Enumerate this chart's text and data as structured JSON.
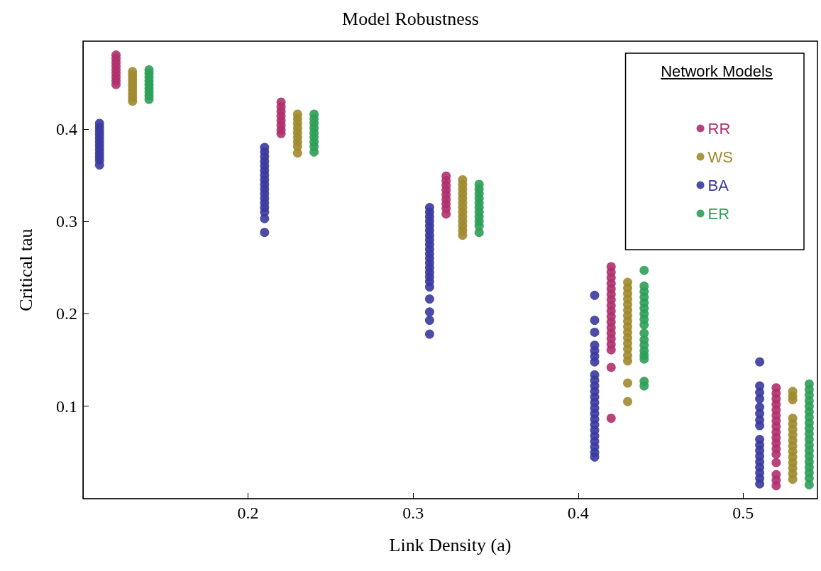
{
  "chart_data": {
    "type": "scatter",
    "title": "Model Robustness",
    "xlabel": "Link Density (a)",
    "ylabel": "Critical tau",
    "legend_title": "Network Models",
    "legend": "top right",
    "marker": "circle",
    "grid": false,
    "xlim": [
      0.1,
      0.545
    ],
    "xticks": [
      0.2,
      0.3,
      0.4,
      0.5
    ],
    "ylim": [
      0,
      0.495
    ],
    "yticks": [
      0.1,
      0.2,
      0.3,
      0.4
    ],
    "series": [
      {
        "name": "RR",
        "color": "#b0306e",
        "x": [
          0.12,
          0.12,
          0.12,
          0.12,
          0.12,
          0.12,
          0.12,
          0.12,
          0.12,
          0.22,
          0.22,
          0.22,
          0.22,
          0.22,
          0.22,
          0.22,
          0.22,
          0.32,
          0.32,
          0.32,
          0.32,
          0.32,
          0.32,
          0.32,
          0.32,
          0.32,
          0.42,
          0.42,
          0.42,
          0.42,
          0.42,
          0.42,
          0.42,
          0.42,
          0.42,
          0.42,
          0.42,
          0.42,
          0.42,
          0.42,
          0.42,
          0.42,
          0.42,
          0.42,
          0.52,
          0.52,
          0.52,
          0.52,
          0.52,
          0.52,
          0.52,
          0.52,
          0.52,
          0.52,
          0.52,
          0.52,
          0.52,
          0.52,
          0.52,
          0.52,
          0.52
        ],
        "values": [
          0.48,
          0.476,
          0.472,
          0.468,
          0.464,
          0.46,
          0.456,
          0.452,
          0.448,
          0.429,
          0.424,
          0.419,
          0.414,
          0.409,
          0.404,
          0.399,
          0.395,
          0.349,
          0.344,
          0.339,
          0.334,
          0.329,
          0.324,
          0.319,
          0.314,
          0.308,
          0.251,
          0.245,
          0.239,
          0.233,
          0.227,
          0.221,
          0.215,
          0.209,
          0.203,
          0.197,
          0.191,
          0.185,
          0.179,
          0.173,
          0.167,
          0.161,
          0.142,
          0.087,
          0.12,
          0.114,
          0.108,
          0.102,
          0.096,
          0.09,
          0.084,
          0.078,
          0.072,
          0.066,
          0.06,
          0.054,
          0.048,
          0.039,
          0.026,
          0.02,
          0.014
        ]
      },
      {
        "name": "WS",
        "color": "#a08a2e",
        "x": [
          0.13,
          0.13,
          0.13,
          0.13,
          0.13,
          0.13,
          0.13,
          0.13,
          0.13,
          0.23,
          0.23,
          0.23,
          0.23,
          0.23,
          0.23,
          0.23,
          0.23,
          0.23,
          0.33,
          0.33,
          0.33,
          0.33,
          0.33,
          0.33,
          0.33,
          0.33,
          0.33,
          0.33,
          0.33,
          0.33,
          0.33,
          0.43,
          0.43,
          0.43,
          0.43,
          0.43,
          0.43,
          0.43,
          0.43,
          0.43,
          0.43,
          0.43,
          0.43,
          0.43,
          0.43,
          0.43,
          0.43,
          0.43,
          0.53,
          0.53,
          0.53,
          0.53,
          0.53,
          0.53,
          0.53,
          0.53,
          0.53,
          0.53,
          0.53,
          0.53,
          0.53,
          0.53,
          0.53
        ],
        "values": [
          0.462,
          0.458,
          0.454,
          0.45,
          0.446,
          0.442,
          0.438,
          0.434,
          0.43,
          0.416,
          0.411,
          0.406,
          0.401,
          0.396,
          0.391,
          0.386,
          0.381,
          0.374,
          0.345,
          0.34,
          0.335,
          0.33,
          0.325,
          0.32,
          0.315,
          0.31,
          0.305,
          0.3,
          0.295,
          0.29,
          0.285,
          0.234,
          0.228,
          0.222,
          0.216,
          0.21,
          0.204,
          0.198,
          0.192,
          0.186,
          0.18,
          0.174,
          0.168,
          0.162,
          0.155,
          0.149,
          0.125,
          0.105,
          0.116,
          0.111,
          0.107,
          0.087,
          0.081,
          0.075,
          0.069,
          0.063,
          0.057,
          0.051,
          0.045,
          0.039,
          0.033,
          0.027,
          0.021
        ]
      },
      {
        "name": "BA",
        "color": "#3a3a9e",
        "x": [
          0.11,
          0.11,
          0.11,
          0.11,
          0.11,
          0.11,
          0.11,
          0.11,
          0.11,
          0.11,
          0.11,
          0.11,
          0.21,
          0.21,
          0.21,
          0.21,
          0.21,
          0.21,
          0.21,
          0.21,
          0.21,
          0.21,
          0.21,
          0.21,
          0.21,
          0.21,
          0.21,
          0.21,
          0.21,
          0.31,
          0.31,
          0.31,
          0.31,
          0.31,
          0.31,
          0.31,
          0.31,
          0.31,
          0.31,
          0.31,
          0.31,
          0.31,
          0.31,
          0.31,
          0.31,
          0.31,
          0.31,
          0.31,
          0.31,
          0.31,
          0.31,
          0.41,
          0.41,
          0.41,
          0.41,
          0.41,
          0.41,
          0.41,
          0.41,
          0.41,
          0.41,
          0.41,
          0.41,
          0.41,
          0.41,
          0.41,
          0.41,
          0.41,
          0.41,
          0.41,
          0.41,
          0.41,
          0.41,
          0.41,
          0.51,
          0.51,
          0.51,
          0.51,
          0.51,
          0.51,
          0.51,
          0.51,
          0.51,
          0.51,
          0.51,
          0.51,
          0.51,
          0.51,
          0.51,
          0.51,
          0.51
        ],
        "values": [
          0.406,
          0.402,
          0.398,
          0.394,
          0.39,
          0.386,
          0.382,
          0.378,
          0.374,
          0.37,
          0.366,
          0.361,
          0.38,
          0.375,
          0.37,
          0.365,
          0.36,
          0.355,
          0.35,
          0.345,
          0.34,
          0.335,
          0.33,
          0.325,
          0.32,
          0.315,
          0.31,
          0.303,
          0.288,
          0.315,
          0.31,
          0.305,
          0.3,
          0.295,
          0.29,
          0.285,
          0.28,
          0.275,
          0.27,
          0.265,
          0.26,
          0.255,
          0.25,
          0.245,
          0.24,
          0.235,
          0.229,
          0.216,
          0.202,
          0.193,
          0.178,
          0.22,
          0.193,
          0.18,
          0.166,
          0.16,
          0.154,
          0.148,
          0.134,
          0.128,
          0.122,
          0.116,
          0.11,
          0.104,
          0.098,
          0.092,
          0.086,
          0.08,
          0.074,
          0.068,
          0.062,
          0.056,
          0.05,
          0.045,
          0.148,
          0.122,
          0.115,
          0.108,
          0.099,
          0.092,
          0.085,
          0.079,
          0.064,
          0.058,
          0.052,
          0.046,
          0.04,
          0.034,
          0.028,
          0.022,
          0.016
        ]
      },
      {
        "name": "ER",
        "color": "#2e9e56",
        "x": [
          0.14,
          0.14,
          0.14,
          0.14,
          0.14,
          0.14,
          0.14,
          0.14,
          0.14,
          0.24,
          0.24,
          0.24,
          0.24,
          0.24,
          0.24,
          0.24,
          0.24,
          0.24,
          0.34,
          0.34,
          0.34,
          0.34,
          0.34,
          0.34,
          0.34,
          0.34,
          0.34,
          0.34,
          0.34,
          0.44,
          0.44,
          0.44,
          0.44,
          0.44,
          0.44,
          0.44,
          0.44,
          0.44,
          0.44,
          0.44,
          0.44,
          0.44,
          0.44,
          0.44,
          0.44,
          0.44,
          0.54,
          0.54,
          0.54,
          0.54,
          0.54,
          0.54,
          0.54,
          0.54,
          0.54,
          0.54,
          0.54,
          0.54,
          0.54,
          0.54,
          0.54,
          0.54,
          0.54,
          0.54,
          0.54
        ],
        "values": [
          0.464,
          0.46,
          0.456,
          0.452,
          0.448,
          0.444,
          0.44,
          0.436,
          0.432,
          0.416,
          0.411,
          0.406,
          0.401,
          0.396,
          0.391,
          0.386,
          0.381,
          0.375,
          0.34,
          0.335,
          0.33,
          0.325,
          0.32,
          0.315,
          0.31,
          0.305,
          0.3,
          0.295,
          0.288,
          0.247,
          0.23,
          0.224,
          0.218,
          0.212,
          0.206,
          0.2,
          0.194,
          0.188,
          0.179,
          0.172,
          0.166,
          0.16,
          0.155,
          0.151,
          0.127,
          0.122,
          0.124,
          0.118,
          0.112,
          0.106,
          0.1,
          0.094,
          0.088,
          0.082,
          0.076,
          0.07,
          0.064,
          0.058,
          0.052,
          0.046,
          0.04,
          0.034,
          0.028,
          0.022,
          0.015
        ]
      }
    ]
  }
}
